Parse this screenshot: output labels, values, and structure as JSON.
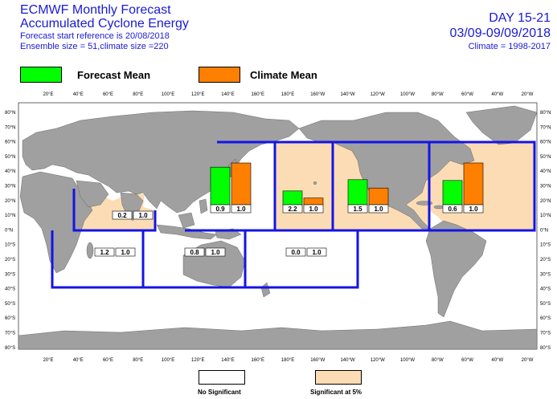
{
  "header": {
    "title_line1": "ECMWF Monthly Forecast",
    "title_line2": "Accumulated Cyclone Energy",
    "forecast_start": "Forecast start reference is 20/08/2018",
    "ensemble": "Ensemble size = 51,climate size =220",
    "day_range": "DAY 15-21",
    "date_range": "03/09-09/09/2018",
    "climate": "Climate = 1998-2017"
  },
  "legend": {
    "forecast_label": "Forecast Mean",
    "climate_label": "Climate Mean",
    "forecast_color": "#00ff00",
    "climate_color": "#ff7f00"
  },
  "bottom_legend": {
    "no_significant": "No Significant",
    "significant": "Significant at 5%",
    "no_significant_color": "#ffffff",
    "significant_color": "#fcdcb4"
  },
  "colors": {
    "ocean": "#ffffff",
    "land": "#a0a0a0",
    "border": "#1414e6",
    "significant_fill": "#fcdcb4"
  },
  "axes": {
    "top_lon_labels": [
      "20°E",
      "40°E",
      "60°E",
      "80°E",
      "100°E",
      "120°E",
      "140°E",
      "160°E",
      "180°E",
      "160°W",
      "140°W",
      "120°W",
      "100°W",
      "80°W",
      "60°W",
      "40°W",
      "20°W"
    ],
    "lat_labels": [
      "80°N",
      "70°N",
      "60°N",
      "50°N",
      "40°N",
      "30°N",
      "20°N",
      "10°N",
      "0°N",
      "10°S",
      "20°S",
      "30°S",
      "40°S",
      "50°S",
      "60°S",
      "70°S",
      "80°S"
    ]
  },
  "chart_data": {
    "type": "bar",
    "title": "Accumulated Cyclone Energy",
    "series_names": [
      "Forecast Mean",
      "Climate Mean"
    ],
    "regions": [
      {
        "id": "north-indian",
        "forecast": 0.2,
        "climate": 1.0,
        "significant": true
      },
      {
        "id": "south-west-indian",
        "forecast": 1.2,
        "climate": 1.0,
        "significant": false
      },
      {
        "id": "australia",
        "forecast": 0.8,
        "climate": 1.0,
        "significant": false
      },
      {
        "id": "western-north-pacific",
        "forecast": 0.9,
        "climate": 1.0,
        "significant": false
      },
      {
        "id": "central-north-pacific",
        "forecast": 2.2,
        "climate": 1.0,
        "significant": true
      },
      {
        "id": "south-pacific",
        "forecast": 0.0,
        "climate": 1.0,
        "significant": false
      },
      {
        "id": "eastern-north-pacific",
        "forecast": 1.5,
        "climate": 1.0,
        "significant": true
      },
      {
        "id": "north-atlantic",
        "forecast": 0.6,
        "climate": 1.0,
        "significant": true
      }
    ],
    "bar_labels": {
      "north-indian": [
        "0.2",
        "1.0"
      ],
      "south-west-indian": [
        "1.2",
        "1.0"
      ],
      "australia": [
        "0.8",
        "1.0"
      ],
      "western-north-pacific": [
        "0.9",
        "1.0"
      ],
      "central-north-pacific": [
        "2.2",
        "1.0"
      ],
      "south-pacific": [
        "0.0",
        "1.0"
      ],
      "eastern-north-pacific": [
        "1.5",
        "1.0"
      ],
      "north-atlantic": [
        "0.6",
        "1.0"
      ]
    },
    "bar_heights_relative": {
      "western-north-pacific": [
        0.9,
        1.0
      ],
      "central-north-pacific": [
        0.33,
        0.16
      ],
      "eastern-north-pacific": [
        0.6,
        0.4
      ],
      "north-atlantic": [
        0.58,
        1.0
      ]
    }
  }
}
